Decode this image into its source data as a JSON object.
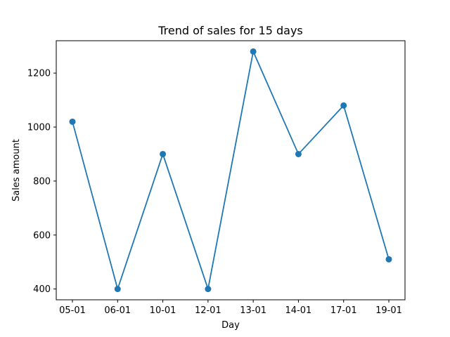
{
  "chart_data": {
    "type": "line",
    "title": "Trend of sales for 15 days",
    "xlabel": "Day",
    "ylabel": "Sales amount",
    "categories": [
      "05-01",
      "06-01",
      "10-01",
      "12-01",
      "13-01",
      "14-01",
      "17-01",
      "19-01"
    ],
    "series": [
      {
        "values": [
          1020,
          400,
          900,
          400,
          1280,
          900,
          1080,
          510
        ],
        "color": "#1f77b4",
        "marker": "circle"
      }
    ],
    "ylim": [
      360,
      1320
    ],
    "yticks": [
      400,
      600,
      800,
      1000,
      1200
    ],
    "grid": false,
    "legend": "none"
  }
}
